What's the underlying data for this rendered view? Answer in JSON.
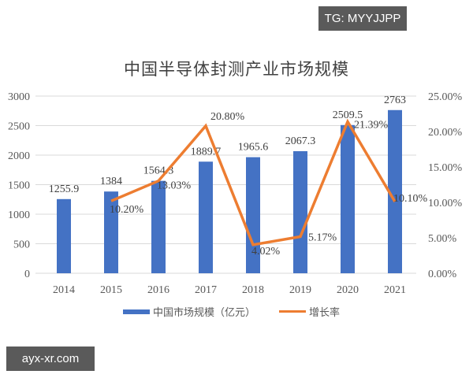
{
  "watermarks": {
    "top_right": "TG: MYYJJPP",
    "bottom_left": "ayx-xr.com"
  },
  "colors": {
    "bar": "#4472c4",
    "line": "#ed7d31",
    "grid": "#d9d9d9",
    "text": "#595959"
  },
  "chart_data": {
    "type": "bar+line",
    "title": "中国半导体封测产业市场规模",
    "categories": [
      "2014",
      "2015",
      "2016",
      "2017",
      "2018",
      "2019",
      "2020",
      "2021"
    ],
    "series": [
      {
        "name": "中国市场规模（亿元）",
        "type": "bar",
        "axis": "left",
        "values": [
          1255.9,
          1384,
          1564.3,
          1889.7,
          1965.6,
          2067.3,
          2509.5,
          2763
        ],
        "labels": [
          "1255.9",
          "1384",
          "1564.3",
          "1889.7",
          "1965.6",
          "2067.3",
          "2509.5",
          "2763"
        ]
      },
      {
        "name": "增长率",
        "type": "line",
        "axis": "right",
        "values": [
          null,
          10.2,
          13.03,
          20.8,
          4.02,
          5.17,
          21.39,
          10.1
        ],
        "labels": [
          "",
          "10.20%",
          "13.03%",
          "20.80%",
          "4.02%",
          "5.17%",
          "21.39%",
          "10.10%"
        ]
      }
    ],
    "left_axis": {
      "ticks": [
        "0",
        "500",
        "1000",
        "1500",
        "2000",
        "2500",
        "3000"
      ],
      "ylim": [
        0,
        3000
      ]
    },
    "right_axis": {
      "ticks": [
        "0.00%",
        "5.00%",
        "10.00%",
        "15.00%",
        "20.00%",
        "25.00%"
      ],
      "ylim": [
        0,
        25
      ]
    },
    "grid": true,
    "legend_position": "bottom"
  }
}
